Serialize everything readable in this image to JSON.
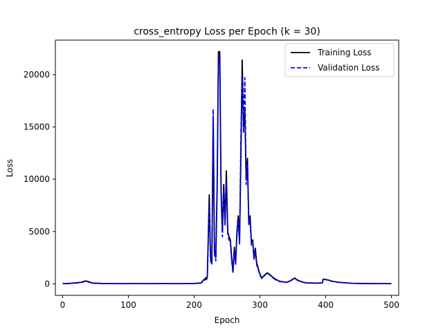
{
  "chart_data": {
    "type": "line",
    "title": "cross_entropy Loss per Epoch (k = 30)",
    "xlabel": "Epoch",
    "ylabel": "Loss",
    "xlim": [
      -11,
      511
    ],
    "ylim": [
      -1100,
      23300
    ],
    "xticks": [
      0,
      100,
      200,
      300,
      400,
      500
    ],
    "yticks": [
      0,
      5000,
      10000,
      15000,
      20000
    ],
    "grid": false,
    "legend_position": "top-right",
    "series": [
      {
        "name": "Training Loss",
        "color": "#000000",
        "style": "solid",
        "points": [
          [
            0,
            20
          ],
          [
            10,
            40
          ],
          [
            20,
            100
          ],
          [
            28,
            150
          ],
          [
            35,
            280
          ],
          [
            40,
            200
          ],
          [
            45,
            80
          ],
          [
            60,
            40
          ],
          [
            100,
            30
          ],
          [
            150,
            30
          ],
          [
            200,
            35
          ],
          [
            210,
            80
          ],
          [
            215,
            400
          ],
          [
            220,
            700
          ],
          [
            223,
            8500
          ],
          [
            225,
            2500
          ],
          [
            227,
            2000
          ],
          [
            229,
            16000
          ],
          [
            231,
            3000
          ],
          [
            233,
            2500
          ],
          [
            235,
            9000
          ],
          [
            237,
            22200
          ],
          [
            239,
            22200
          ],
          [
            241,
            9000
          ],
          [
            243,
            5000
          ],
          [
            245,
            9500
          ],
          [
            247,
            6000
          ],
          [
            249,
            10800
          ],
          [
            251,
            5000
          ],
          [
            253,
            4500
          ],
          [
            255,
            4200
          ],
          [
            257,
            2500
          ],
          [
            259,
            1200
          ],
          [
            261,
            3500
          ],
          [
            263,
            2000
          ],
          [
            265,
            5000
          ],
          [
            267,
            6500
          ],
          [
            269,
            4000
          ],
          [
            271,
            12000
          ],
          [
            273,
            21400
          ],
          [
            275,
            15000
          ],
          [
            277,
            16500
          ],
          [
            279,
            10000
          ],
          [
            281,
            12000
          ],
          [
            283,
            6000
          ],
          [
            285,
            6500
          ],
          [
            287,
            4000
          ],
          [
            289,
            4200
          ],
          [
            291,
            2500
          ],
          [
            293,
            3400
          ],
          [
            295,
            2000
          ],
          [
            297,
            1600
          ],
          [
            299,
            1100
          ],
          [
            301,
            800
          ],
          [
            303,
            550
          ],
          [
            305,
            700
          ],
          [
            308,
            900
          ],
          [
            311,
            1050
          ],
          [
            315,
            900
          ],
          [
            320,
            600
          ],
          [
            325,
            400
          ],
          [
            330,
            250
          ],
          [
            340,
            150
          ],
          [
            345,
            250
          ],
          [
            350,
            450
          ],
          [
            353,
            550
          ],
          [
            356,
            400
          ],
          [
            360,
            280
          ],
          [
            365,
            170
          ],
          [
            370,
            100
          ],
          [
            380,
            80
          ],
          [
            390,
            70
          ],
          [
            395,
            100
          ],
          [
            396,
            450
          ],
          [
            400,
            420
          ],
          [
            405,
            350
          ],
          [
            410,
            250
          ],
          [
            420,
            150
          ],
          [
            430,
            100
          ],
          [
            440,
            60
          ],
          [
            450,
            40
          ],
          [
            460,
            35
          ],
          [
            480,
            30
          ],
          [
            500,
            25
          ]
        ]
      },
      {
        "name": "Validation Loss",
        "color": "#0000ff",
        "style": "dashed",
        "points": [
          [
            0,
            10
          ],
          [
            10,
            30
          ],
          [
            20,
            80
          ],
          [
            28,
            130
          ],
          [
            35,
            240
          ],
          [
            40,
            170
          ],
          [
            45,
            60
          ],
          [
            60,
            30
          ],
          [
            100,
            20
          ],
          [
            150,
            20
          ],
          [
            200,
            25
          ],
          [
            210,
            60
          ],
          [
            215,
            300
          ],
          [
            220,
            500
          ],
          [
            223,
            7500
          ],
          [
            225,
            2200
          ],
          [
            227,
            1800
          ],
          [
            229,
            16700
          ],
          [
            231,
            2800
          ],
          [
            233,
            2200
          ],
          [
            235,
            9500
          ],
          [
            237,
            21800
          ],
          [
            239,
            21000
          ],
          [
            241,
            8500
          ],
          [
            243,
            4500
          ],
          [
            245,
            9000
          ],
          [
            247,
            5500
          ],
          [
            249,
            9800
          ],
          [
            251,
            4800
          ],
          [
            253,
            4200
          ],
          [
            255,
            3900
          ],
          [
            257,
            2200
          ],
          [
            259,
            1000
          ],
          [
            261,
            3200
          ],
          [
            263,
            1800
          ],
          [
            265,
            4700
          ],
          [
            267,
            6000
          ],
          [
            269,
            3700
          ],
          [
            271,
            14000
          ],
          [
            273,
            20000
          ],
          [
            275,
            14500
          ],
          [
            277,
            19700
          ],
          [
            279,
            9500
          ],
          [
            281,
            11500
          ],
          [
            283,
            5600
          ],
          [
            285,
            6100
          ],
          [
            287,
            3700
          ],
          [
            289,
            3900
          ],
          [
            291,
            2300
          ],
          [
            293,
            3100
          ],
          [
            295,
            1800
          ],
          [
            297,
            1500
          ],
          [
            299,
            1000
          ],
          [
            301,
            700
          ],
          [
            303,
            500
          ],
          [
            305,
            650
          ],
          [
            308,
            850
          ],
          [
            311,
            1000
          ],
          [
            315,
            850
          ],
          [
            320,
            550
          ],
          [
            325,
            350
          ],
          [
            330,
            220
          ],
          [
            340,
            130
          ],
          [
            345,
            220
          ],
          [
            350,
            420
          ],
          [
            353,
            500
          ],
          [
            356,
            380
          ],
          [
            360,
            250
          ],
          [
            365,
            150
          ],
          [
            370,
            90
          ],
          [
            380,
            70
          ],
          [
            390,
            60
          ],
          [
            395,
            90
          ],
          [
            396,
            420
          ],
          [
            400,
            400
          ],
          [
            405,
            320
          ],
          [
            410,
            230
          ],
          [
            420,
            130
          ],
          [
            430,
            90
          ],
          [
            440,
            50
          ],
          [
            450,
            30
          ],
          [
            460,
            25
          ],
          [
            480,
            20
          ],
          [
            500,
            15
          ]
        ]
      }
    ]
  }
}
